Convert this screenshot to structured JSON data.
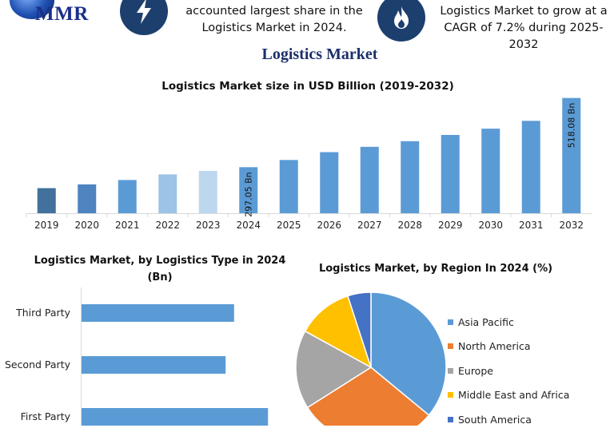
{
  "header": {
    "logo_text": "MMR",
    "left_text_line1": "accounted largest share in the",
    "left_text_line2": "Logistics Market in 2024.",
    "right_text_line1": "Logistics Market to grow at a",
    "right_text_line2": "CAGR of 7.2% during 2025-2032"
  },
  "icons": {
    "bolt": "lightning-bolt-icon",
    "flame": "flame-icon",
    "logo": "globe-logo-icon"
  },
  "main_title": "Logistics Market",
  "colors": {
    "bar_main": "#5b9bd5",
    "bar_dark": "#41719c",
    "bar_mid": "#4e84c0",
    "bar_light1": "#9dc3e6",
    "bar_light2": "#bdd7ee",
    "type_bar": "#5b9bd5",
    "navy": "#1d3f6e"
  },
  "chart_data": [
    {
      "type": "bar",
      "title": "Logistics Market size in USD Billion (2019-2032)",
      "categories": [
        "2019",
        "2020",
        "2021",
        "2022",
        "2023",
        "2024",
        "2025",
        "2026",
        "2027",
        "2028",
        "2029",
        "2030",
        "2031",
        "2032"
      ],
      "values": [
        230,
        242,
        256,
        274,
        285,
        297.05,
        320,
        345,
        362,
        380,
        400,
        420,
        445,
        518.08
      ],
      "data_labels": {
        "2024": "297.05 Bn",
        "2032": "518.08 Bn"
      },
      "ylim": [
        150,
        530
      ],
      "grid": false
    },
    {
      "type": "bar",
      "orientation": "horizontal",
      "title": "Logistics Market, by Logistics Type in 2024 (Bn)",
      "categories": [
        "Third Party",
        "Second Party",
        "First Party"
      ],
      "values": [
        72,
        68,
        88
      ],
      "xlim": [
        0,
        100
      ]
    },
    {
      "type": "pie",
      "title": "Logistics Market, by Region In 2024 (%)",
      "legend_position": "right",
      "slices": [
        {
          "label": "Asia Pacific",
          "value": 36,
          "color": "#5b9bd5"
        },
        {
          "label": "North America",
          "value": 30,
          "color": "#ed7d31"
        },
        {
          "label": "Europe",
          "value": 17,
          "color": "#a5a5a5"
        },
        {
          "label": "Middle East and Africa",
          "value": 12,
          "color": "#ffc000"
        },
        {
          "label": "South America",
          "value": 5,
          "color": "#4472c4"
        }
      ]
    }
  ]
}
